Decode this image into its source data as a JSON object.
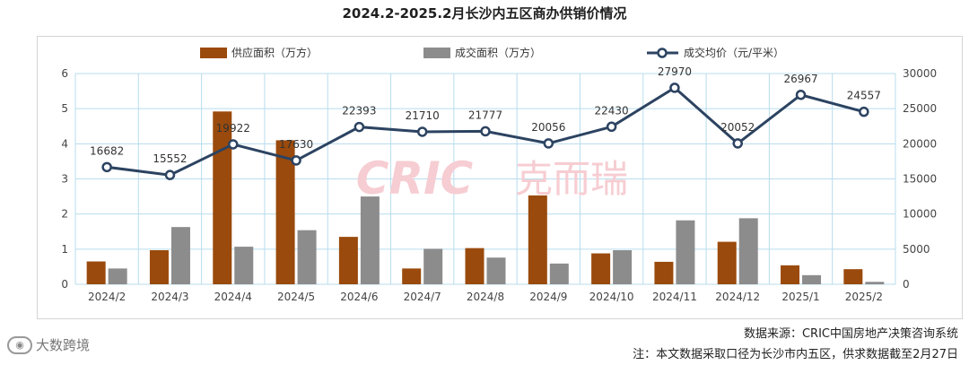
{
  "title": "2024.2-2025.2月长沙内五区商办供销价情况",
  "footer": {
    "source": "数据来源：CRIC中国房地产决策咨询系统",
    "note": "注：本文数据采取口径为长沙市内五区，供求数据截至2月27日"
  },
  "watermark": {
    "logo_text": "CRIC",
    "brand_text": "克而瑞"
  },
  "brand": {
    "text": "大数跨境",
    "icon": "weibo-icon"
  },
  "colors": {
    "supply": "#9a4a0c",
    "transaction": "#8c8c8c",
    "price": "#2c4361",
    "grid": "#b8dced",
    "watermark": "#f6cdd2"
  },
  "chart_data": {
    "type": "bar",
    "categories": [
      "2024/2",
      "2024/3",
      "2024/4",
      "2024/5",
      "2024/6",
      "2024/7",
      "2024/8",
      "2024/9",
      "2024/10",
      "2024/11",
      "2024/12",
      "2025/1",
      "2025/2"
    ],
    "series": [
      {
        "name": "供应面积（万方）",
        "type": "bar",
        "axis": "left",
        "values": [
          0.65,
          0.97,
          4.92,
          4.1,
          1.35,
          0.45,
          1.03,
          2.53,
          0.88,
          0.64,
          1.21,
          0.54,
          0.43
        ]
      },
      {
        "name": "成交面积（万方）",
        "type": "bar",
        "axis": "left",
        "values": [
          0.45,
          1.63,
          1.07,
          1.54,
          2.5,
          1.01,
          0.76,
          0.59,
          0.97,
          1.82,
          1.88,
          0.26,
          0.07
        ]
      },
      {
        "name": "成交均价（元/平米）",
        "type": "line",
        "axis": "right",
        "values": [
          16682,
          15552,
          19922,
          17630,
          22393,
          21710,
          21777,
          20056,
          22430,
          27970,
          20052,
          26967,
          24557
        ]
      }
    ],
    "y_left": {
      "min": 0,
      "max": 6,
      "ticks": [
        "0",
        "1",
        "2",
        "3",
        "4",
        "5",
        "6"
      ]
    },
    "y_right": {
      "min": 0,
      "max": 30000,
      "ticks": [
        "0",
        "5000",
        "10000",
        "15000",
        "20000",
        "25000",
        "30000"
      ]
    },
    "legend_position": "top",
    "grid": true
  }
}
